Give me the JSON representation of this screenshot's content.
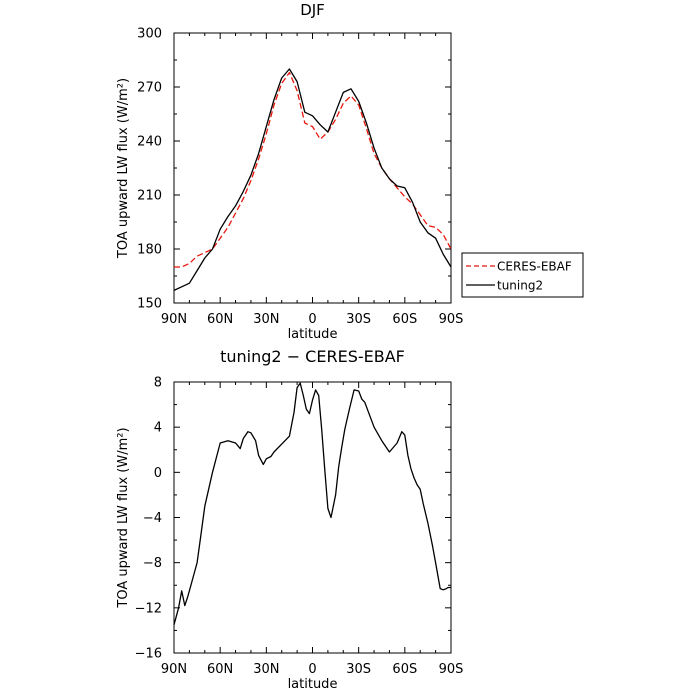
{
  "chart_data": [
    {
      "type": "line",
      "title": "DJF",
      "xlabel": "latitude",
      "ylabel": "TOA upward LW flux (W/m²)",
      "xlim": [
        90,
        -90
      ],
      "ylim": [
        150,
        300
      ],
      "x_tick_values": [
        90,
        60,
        30,
        0,
        -30,
        -60,
        -90
      ],
      "x_tick_labels": [
        "90N",
        "60N",
        "30N",
        "0",
        "30S",
        "60S",
        "90S"
      ],
      "y_tick_values": [
        150,
        180,
        210,
        240,
        270,
        300
      ],
      "y_tick_labels": [
        "150",
        "180",
        "210",
        "240",
        "270",
        "300"
      ],
      "legend": {
        "placement": "outside-right"
      },
      "series": [
        {
          "name": "CERES-EBAF",
          "color": "#e8160c",
          "dash": "dashed",
          "x": [
            90,
            85,
            80,
            75,
            70,
            65,
            60,
            55,
            50,
            45,
            40,
            35,
            30,
            25,
            20,
            15,
            10,
            5,
            0,
            -5,
            -10,
            -15,
            -20,
            -25,
            -30,
            -35,
            -40,
            -45,
            -50,
            -55,
            -60,
            -65,
            -70,
            -75,
            -80,
            -85,
            -90
          ],
          "y": [
            170,
            170,
            172,
            176,
            178,
            180,
            186,
            192,
            200,
            208,
            218,
            230,
            244,
            260,
            272,
            278,
            268,
            250,
            248,
            241,
            245,
            252,
            261,
            265,
            260,
            247,
            233,
            225,
            219,
            214,
            209,
            205,
            199,
            193,
            192,
            188,
            180
          ]
        },
        {
          "name": "tuning2",
          "color": "#000000",
          "dash": "solid",
          "x": [
            90,
            85,
            80,
            75,
            70,
            65,
            60,
            55,
            50,
            45,
            40,
            35,
            30,
            25,
            20,
            15,
            10,
            5,
            0,
            -5,
            -10,
            -15,
            -20,
            -25,
            -30,
            -35,
            -40,
            -45,
            -50,
            -55,
            -60,
            -65,
            -70,
            -75,
            -80,
            -85,
            -90
          ],
          "y": [
            157,
            159,
            161,
            168,
            175,
            180,
            191,
            198,
            204,
            212,
            221,
            233,
            248,
            263,
            275,
            280,
            273,
            256,
            254,
            249,
            245,
            256,
            267,
            269,
            262,
            250,
            236,
            225,
            219,
            215,
            214,
            206,
            195,
            189,
            186,
            177,
            170
          ]
        }
      ]
    },
    {
      "type": "line",
      "title": "tuning2 − CERES-EBAF",
      "xlabel": "latitude",
      "ylabel": "TOA upward LW flux (W/m²)",
      "xlim": [
        90,
        -90
      ],
      "ylim": [
        -16,
        8
      ],
      "x_tick_values": [
        90,
        60,
        30,
        0,
        -30,
        -60,
        -90
      ],
      "x_tick_labels": [
        "90N",
        "60N",
        "30N",
        "0",
        "30S",
        "60S",
        "90S"
      ],
      "y_tick_values": [
        8,
        4,
        0,
        -4,
        -8,
        -12,
        -16
      ],
      "y_tick_labels": [
        "8",
        "4",
        "0",
        "−4",
        "−8",
        "−12",
        "−16"
      ],
      "series": [
        {
          "color": "#000000",
          "dash": "solid",
          "x": [
            90,
            87,
            85,
            83,
            81,
            79,
            77,
            75,
            73,
            70,
            65,
            60,
            55,
            50,
            47,
            45,
            42,
            40,
            37,
            35,
            32,
            30,
            27,
            25,
            20,
            15,
            12,
            10,
            8,
            6,
            4,
            2,
            0,
            -2,
            -4,
            -6,
            -8,
            -10,
            -12,
            -15,
            -17,
            -19,
            -21,
            -24,
            -27,
            -30,
            -32,
            -34,
            -37,
            -40,
            -45,
            -50,
            -55,
            -58,
            -60,
            -62,
            -64,
            -66,
            -68,
            -70,
            -72,
            -75,
            -78,
            -80,
            -83,
            -85,
            -87,
            -88,
            -90
          ],
          "y": [
            -13.5,
            -12,
            -10.5,
            -11.8,
            -11,
            -10,
            -9,
            -8,
            -6,
            -3,
            0,
            2.6,
            2.8,
            2.6,
            2.1,
            3.0,
            3.6,
            3.5,
            2.8,
            1.5,
            0.7,
            1.2,
            1.4,
            1.8,
            2.5,
            3.2,
            5.3,
            7.5,
            7.9,
            6.8,
            5.6,
            5.2,
            6.4,
            7.3,
            6.8,
            3.8,
            0.2,
            -3.2,
            -4.0,
            -2.0,
            0.5,
            2.2,
            3.8,
            5.6,
            7.3,
            7.2,
            6.5,
            6.2,
            5.1,
            4.0,
            2.8,
            1.8,
            2.6,
            3.6,
            3.3,
            1.5,
            0.3,
            -0.5,
            -1.1,
            -1.5,
            -2.8,
            -4.5,
            -6.5,
            -8.0,
            -10.3,
            -10.4,
            -10.3,
            -10.2,
            -10.2
          ]
        }
      ]
    }
  ]
}
